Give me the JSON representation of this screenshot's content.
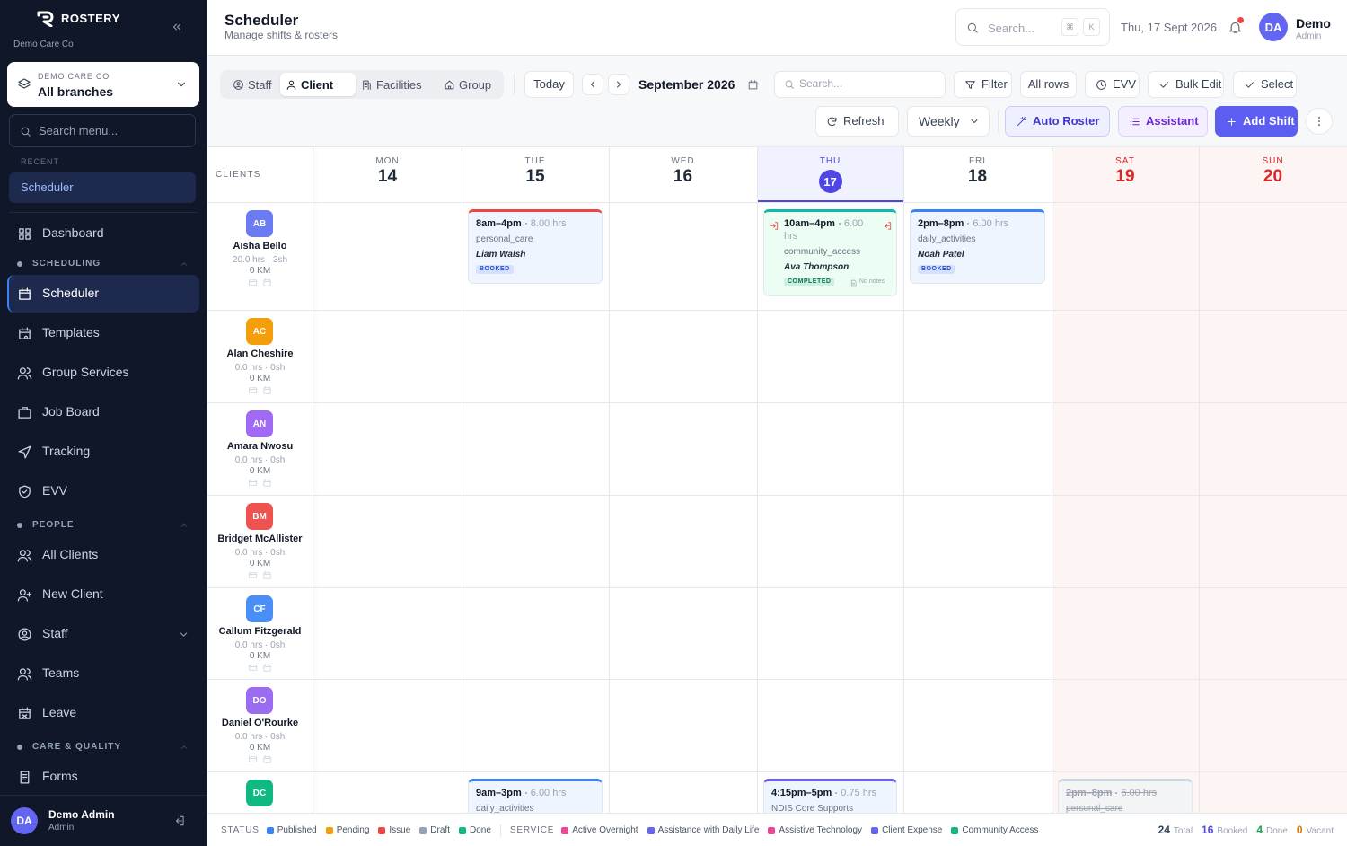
{
  "sidebar": {
    "brand": "ROSTERY",
    "org": "Demo Care Co",
    "branch": {
      "label": "DEMO CARE CO",
      "value": "All branches"
    },
    "search": "Search menu...",
    "recent": {
      "title": "RECENT",
      "items": [
        "Scheduler"
      ]
    },
    "top_items": [
      "Dashboard"
    ],
    "sections": [
      {
        "title": "SCHEDULING",
        "items": [
          "Scheduler",
          "Templates",
          "Group Services",
          "Job Board",
          "Tracking",
          "EVV"
        ]
      },
      {
        "title": "PEOPLE",
        "items": [
          "All Clients",
          "New Client",
          "Staff",
          "Teams",
          "Leave"
        ]
      },
      {
        "title": "CARE & QUALITY",
        "items": [
          "Forms"
        ]
      }
    ],
    "user": {
      "initials": "DA",
      "name": "Demo Admin",
      "role": "Admin"
    }
  },
  "header": {
    "title": "Scheduler",
    "subtitle": "Manage shifts & rosters",
    "search": "Search...",
    "shortcut": [
      "⌘",
      "K"
    ],
    "date": "Thu, 17 Sept 2026",
    "user": {
      "initials": "DA",
      "name": "Demo",
      "role": "Admin"
    }
  },
  "toolbar": {
    "views": [
      "Staff",
      "Client",
      "Facilities",
      "Group"
    ],
    "today": "Today",
    "period": "September 2026",
    "search": "Search...",
    "actions": [
      "Filter",
      "All rows",
      "EVV",
      "Bulk Edit",
      "Select"
    ],
    "refresh": "Refresh",
    "range": "Weekly",
    "auto_roster": "Auto Roster",
    "assistant": "Assistant",
    "add_shift": "Add Shift"
  },
  "calendar": {
    "clients_label": "CLIENTS",
    "days": [
      {
        "dow": "MON",
        "date": 14
      },
      {
        "dow": "TUE",
        "date": 15
      },
      {
        "dow": "WED",
        "date": 16
      },
      {
        "dow": "THU",
        "date": 17
      },
      {
        "dow": "FRI",
        "date": 18
      },
      {
        "dow": "SAT",
        "date": 19
      },
      {
        "dow": "SUN",
        "date": 20
      }
    ],
    "clients": [
      {
        "initials": "AB",
        "color": "#6b7cf2",
        "name": "Aisha Bello",
        "hours": "20.0 hrs · 3sh",
        "km": "0 KM",
        "cells": [
          null,
          {
            "time": "8am–4pm",
            "hours": "8.00 hrs",
            "service": "personal_care",
            "staff": "Liam Walsh",
            "status": "BOOKED",
            "color": "#ef4444",
            "fill": "#eff5ff",
            "status_color": "#1d4ed8"
          },
          null,
          {
            "time": "10am–4pm",
            "hours": "6.00 hrs",
            "service": "community_access",
            "staff": "Ava Thompson",
            "status": "COMPLETED",
            "note": "No notes",
            "color": "#14b8a6",
            "fill": "#ecfdf3",
            "status_color": "#047857"
          },
          {
            "time": "2pm–8pm",
            "hours": "6.00 hrs",
            "service": "daily_activities",
            "staff": "Noah Patel",
            "status": "BOOKED",
            "color": "#3b82f6",
            "fill": "#eff5ff",
            "status_color": "#1d4ed8"
          },
          null,
          null
        ]
      },
      {
        "initials": "AC",
        "color": "#f59e0b",
        "name": "Alan Cheshire",
        "hours": "0.0 hrs · 0sh",
        "km": "0 KM",
        "cells": [
          null,
          null,
          null,
          null,
          null,
          null,
          null
        ]
      },
      {
        "initials": "AN",
        "color": "#a06af5",
        "name": "Amara Nwosu",
        "hours": "0.0 hrs · 0sh",
        "km": "0 KM",
        "cells": [
          null,
          null,
          null,
          null,
          null,
          null,
          null
        ]
      },
      {
        "initials": "BM",
        "color": "#ef5350",
        "name": "Bridget McAllister",
        "hours": "0.0 hrs · 0sh",
        "km": "0 KM",
        "cells": [
          null,
          null,
          null,
          null,
          null,
          null,
          null
        ]
      },
      {
        "initials": "CF",
        "color": "#4b8ef5",
        "name": "Callum Fitzgerald",
        "hours": "0.0 hrs · 0sh",
        "km": "0 KM",
        "cells": [
          null,
          null,
          null,
          null,
          null,
          null,
          null
        ]
      },
      {
        "initials": "DO",
        "color": "#9b6cf2",
        "name": "Daniel O'Rourke",
        "hours": "0.0 hrs · 0sh",
        "km": "0 KM",
        "cells": [
          null,
          null,
          null,
          null,
          null,
          null,
          null
        ]
      },
      {
        "initials": "DC",
        "color": "#10b981",
        "cells": [
          null,
          {
            "time": "9am–3pm",
            "hours": "6.00 hrs",
            "service": "daily_activities",
            "color": "#3b82f6",
            "fill": "#eff5ff"
          },
          null,
          {
            "time": "4:15pm–5pm",
            "hours": "0.75 hrs",
            "service": "NDIS Core Supports",
            "color": "#6d5ef2",
            "fill": "#eff5ff"
          },
          null,
          {
            "time": "2pm–8pm",
            "hours": "6.00 hrs",
            "service": "personal_care",
            "color": "#cbd5e1",
            "fill": "#f3f4f6",
            "cancelled": true
          },
          null
        ]
      }
    ]
  },
  "footer": {
    "status_label": "STATUS",
    "statuses": [
      {
        "name": "Published",
        "color": "#3b82f6"
      },
      {
        "name": "Pending",
        "color": "#f59e0b"
      },
      {
        "name": "Issue",
        "color": "#ef4444"
      },
      {
        "name": "Draft",
        "color": "#94a3b8"
      },
      {
        "name": "Done",
        "color": "#10b981"
      }
    ],
    "service_label": "SERVICE",
    "services": [
      {
        "name": "Active Overnight",
        "color": "#ec4899"
      },
      {
        "name": "Assistance with Daily Life",
        "color": "#6366f1"
      },
      {
        "name": "Assistive Technology",
        "color": "#ec4899"
      },
      {
        "name": "Client Expense",
        "color": "#6366f1"
      },
      {
        "name": "Community Access",
        "color": "#10b981"
      }
    ],
    "totals": [
      {
        "value": 24,
        "label": "Total",
        "color": "#334155"
      },
      {
        "value": 16,
        "label": "Booked",
        "color": "#4f46e5"
      },
      {
        "value": 4,
        "label": "Done",
        "color": "#16a34a"
      },
      {
        "value": 0,
        "label": "Vacant",
        "color": "#d97706"
      }
    ]
  }
}
